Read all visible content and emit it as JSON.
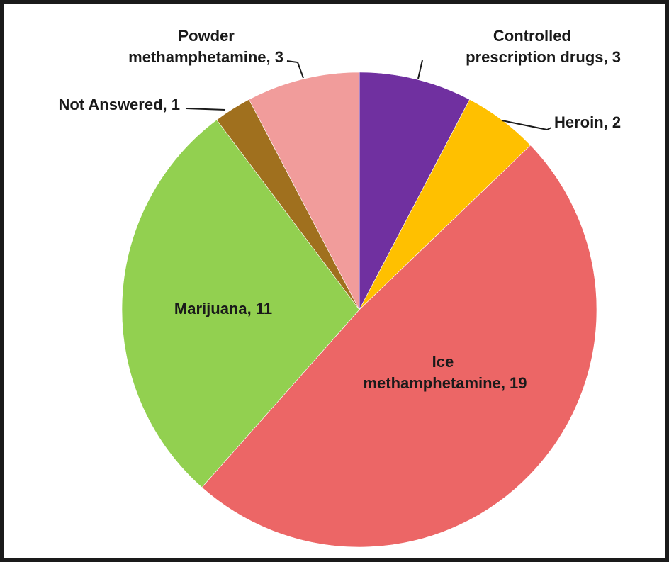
{
  "chart_data": {
    "type": "pie",
    "title": "",
    "slices": [
      {
        "label": "Controlled prescription drugs",
        "value": 3,
        "color": "#7030A0",
        "label_lines": [
          "Controlled",
          "prescription drugs, 3"
        ]
      },
      {
        "label": "Heroin",
        "value": 2,
        "color": "#FFC000",
        "label_lines": [
          "Heroin, 2"
        ]
      },
      {
        "label": "Ice methamphetamine",
        "value": 19,
        "color": "#EC6666",
        "label_lines": [
          "Ice",
          "methamphetamine, 19"
        ]
      },
      {
        "label": "Marijuana",
        "value": 11,
        "color": "#92D050",
        "label_lines": [
          "Marijuana, 11"
        ]
      },
      {
        "label": "Not Answered",
        "value": 1,
        "color": "#A0701E",
        "label_lines": [
          "Not Answered, 1"
        ]
      },
      {
        "label": "Powder methamphetamine",
        "value": 3,
        "color": "#F19C9B",
        "label_lines": [
          "Powder",
          "methamphetamine, 3"
        ]
      }
    ],
    "start_angle_deg": 0,
    "direction": "clockwise",
    "legend": "none"
  }
}
